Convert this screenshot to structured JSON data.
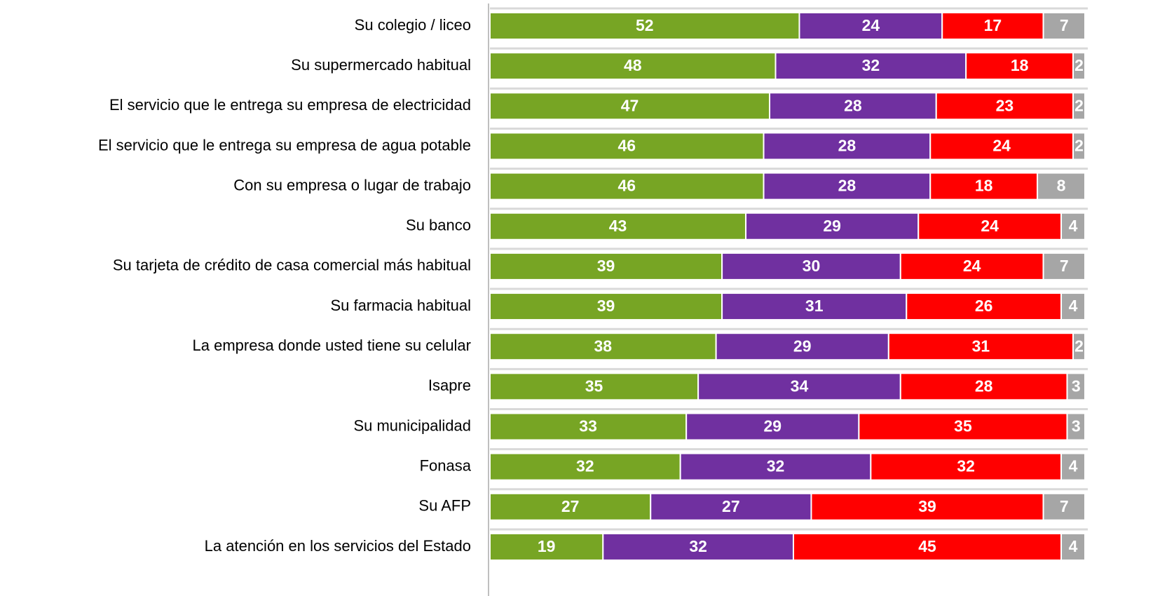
{
  "chart_data": {
    "type": "stacked-bar-horizontal",
    "categories": [
      "Su colegio / liceo",
      "Su supermercado habitual",
      "El servicio que le entrega su empresa de electricidad",
      "El servicio que le entrega su empresa de agua potable",
      "Con su empresa o lugar de trabajo",
      "Su banco",
      "Su tarjeta de crédito de casa comercial más habitual",
      "Su farmacia habitual",
      "La empresa donde usted tiene su celular",
      "Isapre",
      "Su municipalidad",
      "Fonasa",
      "Su AFP",
      "La atención en los servicios del Estado"
    ],
    "series": [
      {
        "color": "#77a524",
        "values": [
          52,
          48,
          47,
          46,
          46,
          43,
          39,
          39,
          38,
          35,
          33,
          32,
          27,
          19
        ]
      },
      {
        "color": "#7030a0",
        "values": [
          24,
          32,
          28,
          28,
          28,
          29,
          30,
          31,
          29,
          34,
          29,
          32,
          27,
          32
        ]
      },
      {
        "color": "#ff0000",
        "values": [
          17,
          18,
          23,
          24,
          18,
          24,
          24,
          26,
          31,
          28,
          35,
          32,
          39,
          45
        ]
      },
      {
        "color": "#a6a6a6",
        "values": [
          7,
          2,
          2,
          2,
          8,
          4,
          7,
          4,
          2,
          3,
          3,
          4,
          7,
          4
        ]
      }
    ],
    "xlim": [
      0,
      100
    ]
  }
}
